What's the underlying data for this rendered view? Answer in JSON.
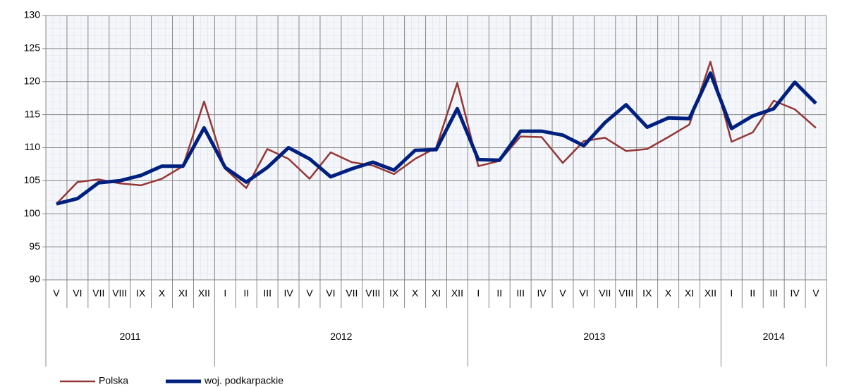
{
  "chart_data": {
    "type": "line",
    "categories": [
      "V",
      "VI",
      "VII",
      "VIII",
      "IX",
      "X",
      "XI",
      "XII",
      "I",
      "II",
      "III",
      "IV",
      "V",
      "VI",
      "VII",
      "VIII",
      "IX",
      "X",
      "XI",
      "XII",
      "I",
      "II",
      "III",
      "IV",
      "V",
      "VI",
      "VII",
      "VIII",
      "IX",
      "X",
      "XI",
      "XII",
      "I",
      "II",
      "III",
      "IV",
      "V"
    ],
    "years": [
      "2011",
      "2011",
      "2011",
      "2011",
      "2011",
      "2011",
      "2011",
      "2011",
      "2012",
      "2012",
      "2012",
      "2012",
      "2012",
      "2012",
      "2012",
      "2012",
      "2012",
      "2012",
      "2012",
      "2012",
      "2013",
      "2013",
      "2013",
      "2013",
      "2013",
      "2013",
      "2013",
      "2013",
      "2013",
      "2013",
      "2013",
      "2013",
      "2014",
      "2014",
      "2014",
      "2014",
      "2014"
    ],
    "series": [
      {
        "name": "Polska",
        "color": "#953735",
        "values": [
          101.5,
          104.8,
          105.2,
          104.6,
          104.3,
          105.3,
          107.2,
          117.0,
          106.8,
          103.9,
          109.8,
          108.3,
          105.3,
          109.3,
          107.8,
          107.3,
          106.0,
          108.3,
          110.0,
          119.8,
          107.2,
          108.0,
          111.7,
          111.6,
          107.7,
          111.0,
          111.5,
          109.5,
          109.8,
          111.6,
          113.5,
          123.0,
          110.9,
          112.3,
          117.1,
          115.8,
          113.0
        ]
      },
      {
        "name": "woj. podkarpackie",
        "color": "#002080",
        "values": [
          101.5,
          102.3,
          104.7,
          105.0,
          105.8,
          107.2,
          107.2,
          113.0,
          107.0,
          104.8,
          107.0,
          110.0,
          108.3,
          105.6,
          106.8,
          107.8,
          106.6,
          109.6,
          109.7,
          115.9,
          108.2,
          108.1,
          112.5,
          112.5,
          111.9,
          110.3,
          113.8,
          116.5,
          113.1,
          114.5,
          114.4,
          121.3,
          112.9,
          114.8,
          115.9,
          119.9,
          116.7
        ]
      }
    ],
    "ylim": [
      90,
      130
    ],
    "yticks": [
      90,
      95,
      100,
      105,
      110,
      115,
      120,
      125,
      130
    ],
    "grid": true
  }
}
